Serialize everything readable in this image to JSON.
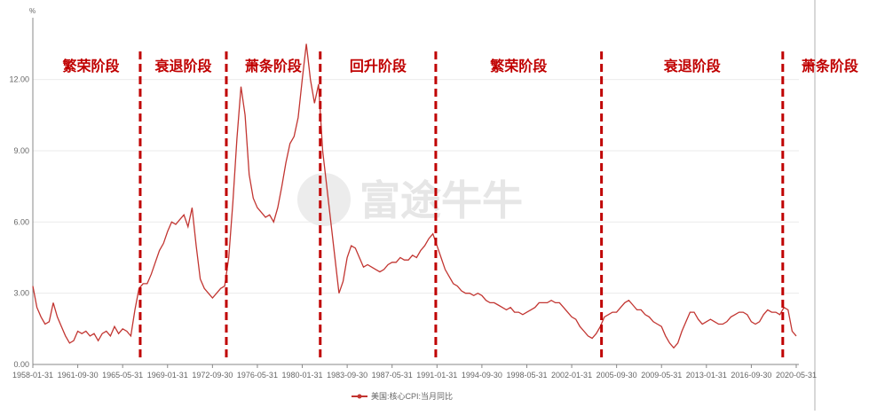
{
  "chart_data": {
    "type": "line",
    "y_unit": "%",
    "watermark": "富途牛牛",
    "categories": [
      "1958-01-31",
      null,
      null,
      null,
      null,
      null,
      null,
      null,
      null,
      null,
      null,
      "1961-09-30",
      null,
      null,
      null,
      null,
      null,
      null,
      null,
      null,
      null,
      null,
      "1965-05-31",
      null,
      null,
      null,
      null,
      null,
      null,
      null,
      null,
      null,
      null,
      "1969-01-31",
      null,
      null,
      null,
      null,
      null,
      null,
      null,
      null,
      null,
      null,
      "1972-09-30",
      null,
      null,
      null,
      null,
      null,
      null,
      null,
      null,
      null,
      null,
      "1976-05-31",
      null,
      null,
      null,
      null,
      null,
      null,
      null,
      null,
      null,
      null,
      "1980-01-31",
      null,
      null,
      null,
      null,
      null,
      null,
      null,
      null,
      null,
      null,
      "1983-09-30",
      null,
      null,
      null,
      null,
      null,
      null,
      null,
      null,
      null,
      null,
      "1987-05-31",
      null,
      null,
      null,
      null,
      null,
      null,
      null,
      null,
      null,
      null,
      "1991-01-31",
      null,
      null,
      null,
      null,
      null,
      null,
      null,
      null,
      null,
      null,
      "1994-09-30",
      null,
      null,
      null,
      null,
      null,
      null,
      null,
      null,
      null,
      null,
      "1998-05-31",
      null,
      null,
      null,
      null,
      null,
      null,
      null,
      null,
      null,
      null,
      "2002-01-31",
      null,
      null,
      null,
      null,
      null,
      null,
      null,
      null,
      null,
      null,
      "2005-09-30",
      null,
      null,
      null,
      null,
      null,
      null,
      null,
      null,
      null,
      null,
      "2009-05-31",
      null,
      null,
      null,
      null,
      null,
      null,
      null,
      null,
      null,
      null,
      "2013-01-31",
      null,
      null,
      null,
      null,
      null,
      null,
      null,
      null,
      null,
      null,
      "2016-09-30",
      null,
      null,
      null,
      null,
      null,
      null,
      null,
      null,
      null,
      null,
      "2020-05-31"
    ],
    "series": [
      {
        "name": "美国:核心CPI:当月同比",
        "color": "#c23531",
        "values": [
          3.3,
          2.4,
          2.0,
          1.7,
          1.8,
          2.6,
          2.0,
          1.6,
          1.2,
          0.9,
          1.0,
          1.4,
          1.3,
          1.4,
          1.2,
          1.3,
          1.0,
          1.3,
          1.4,
          1.2,
          1.6,
          1.3,
          1.5,
          1.4,
          1.2,
          2.3,
          3.2,
          3.4,
          3.4,
          3.8,
          4.3,
          4.8,
          5.1,
          5.6,
          6.0,
          5.9,
          6.1,
          6.3,
          5.8,
          6.6,
          5.0,
          3.6,
          3.2,
          3.0,
          2.8,
          3.0,
          3.2,
          3.3,
          4.5,
          6.8,
          9.5,
          11.7,
          10.5,
          8.0,
          7.0,
          6.6,
          6.4,
          6.2,
          6.3,
          6.0,
          6.6,
          7.5,
          8.5,
          9.3,
          9.6,
          10.4,
          12.0,
          13.5,
          12.0,
          11.0,
          11.8,
          9.0,
          7.5,
          6.0,
          4.5,
          3.0,
          3.5,
          4.5,
          5.0,
          4.9,
          4.5,
          4.1,
          4.2,
          4.1,
          4.0,
          3.9,
          4.0,
          4.2,
          4.3,
          4.3,
          4.5,
          4.4,
          4.4,
          4.6,
          4.5,
          4.8,
          5.0,
          5.3,
          5.5,
          5.0,
          4.5,
          4.0,
          3.7,
          3.4,
          3.3,
          3.1,
          3.0,
          3.0,
          2.9,
          3.0,
          2.9,
          2.7,
          2.6,
          2.6,
          2.5,
          2.4,
          2.3,
          2.4,
          2.2,
          2.2,
          2.1,
          2.2,
          2.3,
          2.4,
          2.6,
          2.6,
          2.6,
          2.7,
          2.6,
          2.6,
          2.4,
          2.2,
          2.0,
          1.9,
          1.6,
          1.4,
          1.2,
          1.1,
          1.3,
          1.6,
          2.0,
          2.1,
          2.2,
          2.2,
          2.4,
          2.6,
          2.7,
          2.5,
          2.3,
          2.3,
          2.1,
          2.0,
          1.8,
          1.7,
          1.6,
          1.2,
          0.9,
          0.7,
          0.9,
          1.4,
          1.8,
          2.2,
          2.2,
          1.9,
          1.7,
          1.8,
          1.9,
          1.8,
          1.7,
          1.7,
          1.8,
          2.0,
          2.1,
          2.2,
          2.2,
          2.1,
          1.8,
          1.7,
          1.8,
          2.1,
          2.3,
          2.2,
          2.2,
          2.1,
          2.4,
          2.3,
          1.4,
          1.2
        ]
      }
    ],
    "ylim": [
      0,
      14.6
    ],
    "yticks": [
      {
        "value": 0,
        "label": "0.00"
      },
      {
        "value": 3,
        "label": "3.00"
      },
      {
        "value": 6,
        "label": "6.00"
      },
      {
        "value": 9,
        "label": "9.00"
      },
      {
        "value": 12,
        "label": "12.00"
      }
    ],
    "grid": true,
    "legend": "bottom",
    "phases": [
      "繁荣阶段",
      "衰退阶段",
      "萧条阶段",
      "回升阶段",
      "繁荣阶段",
      "衰退阶段",
      "萧条阶段"
    ],
    "phase_dividers": [
      26.3,
      47.4,
      70.4,
      98.7,
      139.3,
      183.7
    ],
    "divider_color": "#c00000"
  }
}
